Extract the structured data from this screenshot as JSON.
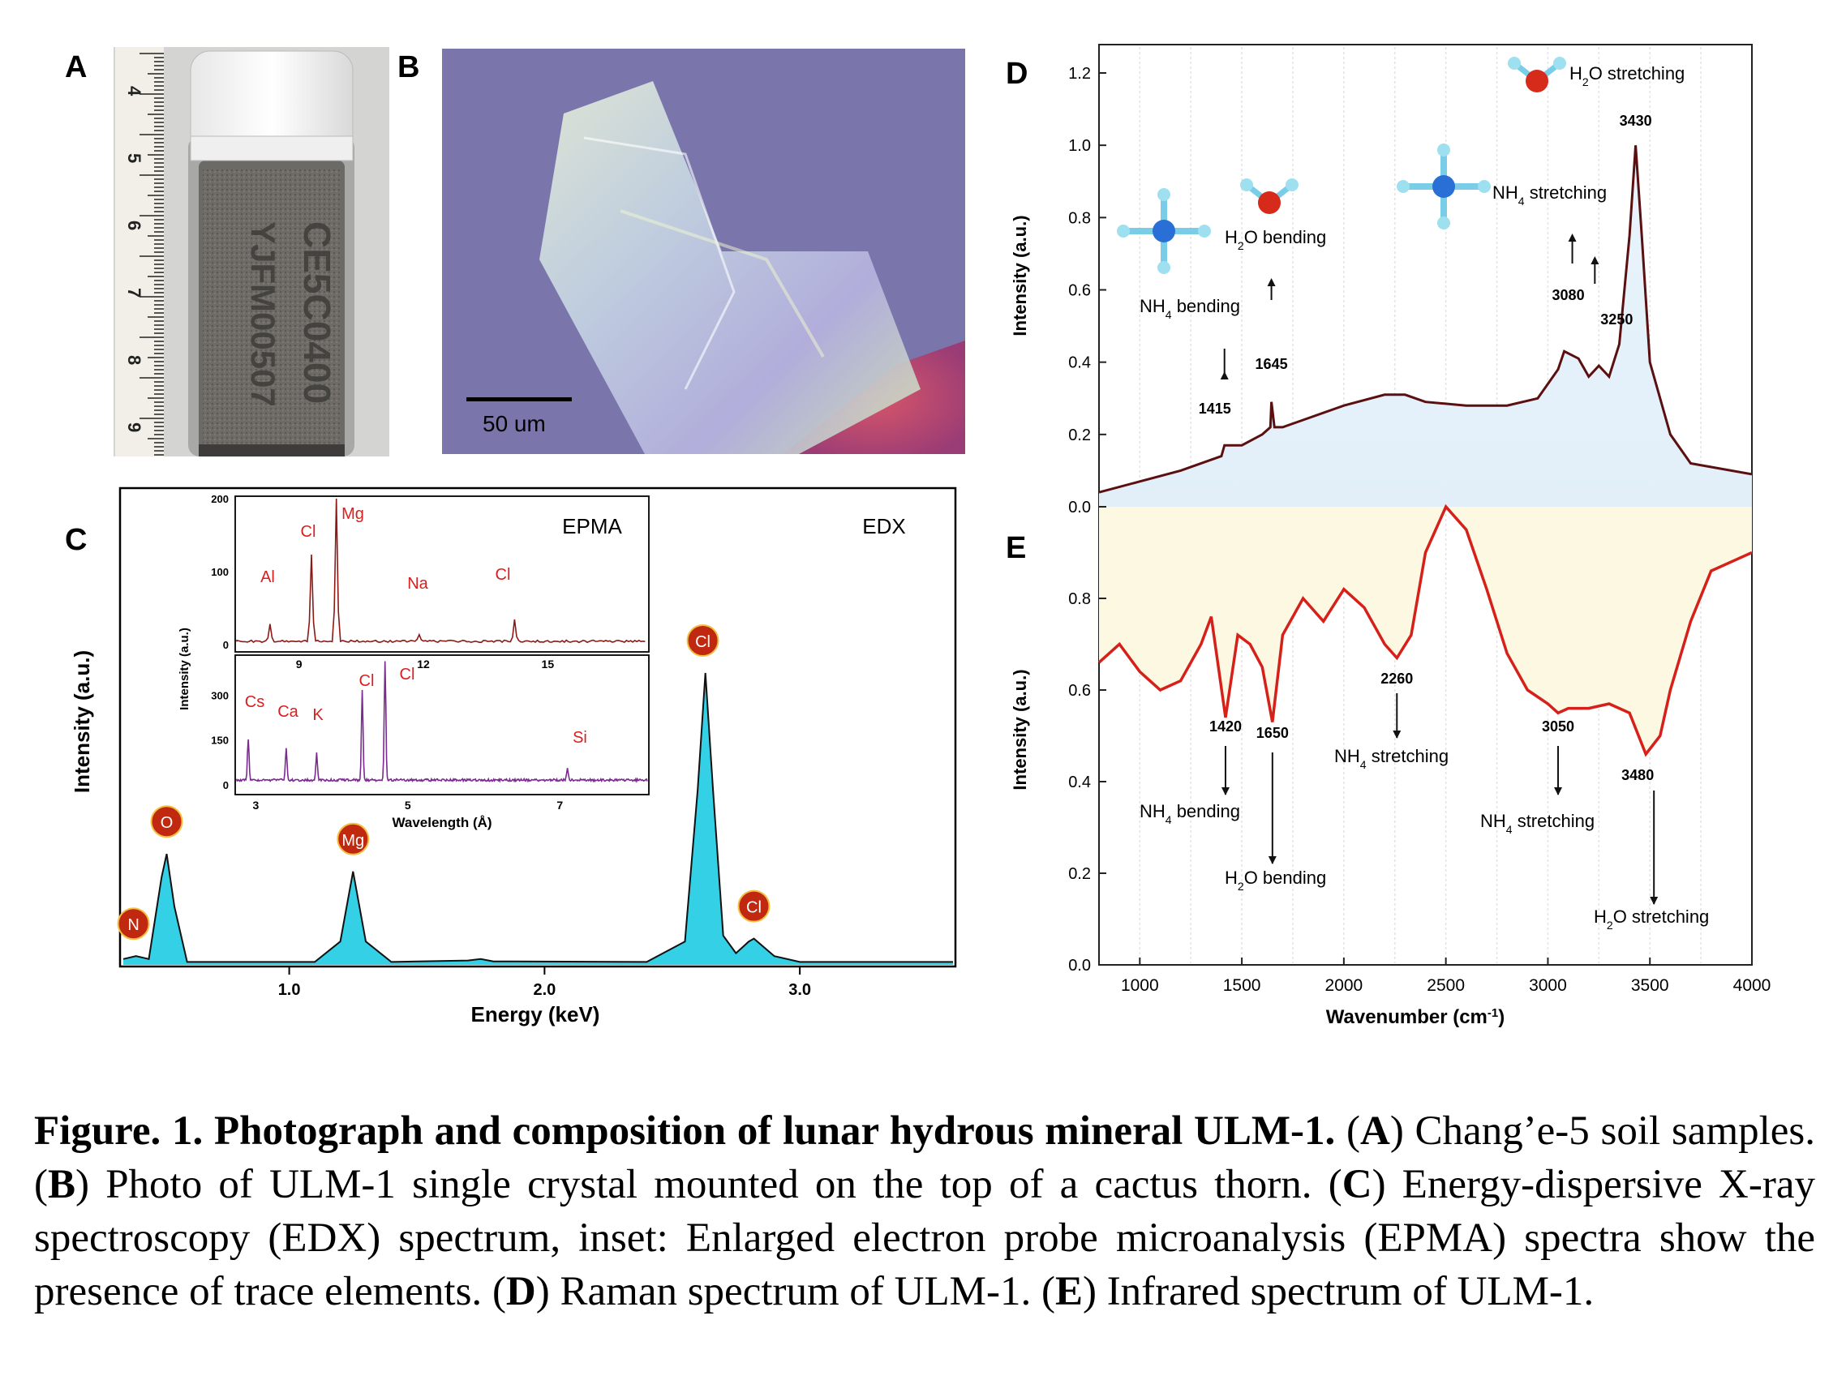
{
  "panels": {
    "A": "A",
    "B": "B",
    "C": "C",
    "D": "D",
    "E": "E"
  },
  "photoA": {
    "ruler_labels": [
      "4",
      "5",
      "6",
      "7",
      "8",
      "9"
    ],
    "vial_text_line1": "CE5C0400",
    "vial_text_line2": "YJFM00507"
  },
  "photoB": {
    "scale_label": "50 um"
  },
  "chart_data": [
    {
      "panel": "C",
      "type": "line",
      "title": "",
      "labels": {
        "EDX": "EDX",
        "EPMA": "EPMA"
      },
      "xlabel": "Energy (keV)",
      "ylabel": "Intensity (a.u.)",
      "xlim": [
        0.35,
        3.6
      ],
      "xticks": [
        "1.0",
        "2.0",
        "3.0"
      ],
      "series": [
        {
          "x": [
            0.35,
            0.4,
            0.45,
            0.5,
            0.52,
            0.55,
            0.6,
            0.8,
            1.1,
            1.2,
            1.25,
            1.3,
            1.4,
            1.7,
            1.75,
            1.8,
            2.4,
            2.55,
            2.6,
            2.63,
            2.66,
            2.7,
            2.75,
            2.8,
            2.82,
            2.9,
            3.0,
            3.6
          ],
          "y": [
            0.02,
            0.03,
            0.02,
            0.3,
            0.38,
            0.2,
            0.01,
            0.01,
            0.01,
            0.08,
            0.32,
            0.08,
            0.01,
            0.015,
            0.02,
            0.012,
            0.01,
            0.08,
            0.6,
            1.0,
            0.6,
            0.1,
            0.04,
            0.08,
            0.09,
            0.03,
            0.01,
            0.01
          ]
        }
      ],
      "peaks": [
        {
          "label": "N",
          "x": 0.39
        },
        {
          "label": "O",
          "x": 0.52
        },
        {
          "label": "Mg",
          "x": 1.25
        },
        {
          "label": "Cl",
          "x": 2.62
        },
        {
          "label": "Cl",
          "x": 2.82
        }
      ],
      "inset_top": {
        "yticks": [
          "0",
          "100",
          "200"
        ],
        "xticks": [
          "9",
          "12",
          "15"
        ],
        "peaks": [
          {
            "label": "Al",
            "x": 8.3,
            "y": 25
          },
          {
            "label": "Cl",
            "x": 9.3,
            "y": 120
          },
          {
            "label": "Mg",
            "x": 9.9,
            "y": 200
          },
          {
            "label": "Na",
            "x": 11.9,
            "y": 8
          },
          {
            "label": "Cl",
            "x": 14.2,
            "y": 30
          }
        ]
      },
      "inset_bottom": {
        "yticks": [
          "0",
          "150",
          "300"
        ],
        "xticks": [
          "3",
          "5",
          "7"
        ],
        "xlabel": "Wavelength (Å)",
        "peaks": [
          {
            "label": "Cs",
            "x": 2.9,
            "y": 140
          },
          {
            "label": "Ca",
            "x": 3.4,
            "y": 110
          },
          {
            "label": "K",
            "x": 3.8,
            "y": 90
          },
          {
            "label": "Cl",
            "x": 4.4,
            "y": 300
          },
          {
            "label": "Cl",
            "x": 4.7,
            "y": 400
          },
          {
            "label": "Si",
            "x": 7.1,
            "y": 40
          }
        ]
      },
      "inset_ylabel": "Intensity (a.u.)"
    },
    {
      "panel": "D",
      "type": "line",
      "xlabel": "",
      "ylabel": "Intensity (a.u.)",
      "ylim": [
        0,
        1.2
      ],
      "yticks": [
        "0.0",
        "0.2",
        "0.4",
        "0.6",
        "0.8",
        "1.0",
        "1.2"
      ],
      "xlim": [
        800,
        4000
      ],
      "series": [
        {
          "x": [
            800,
            1000,
            1200,
            1400,
            1415,
            1500,
            1600,
            1640,
            1645,
            1660,
            1700,
            1800,
            2000,
            2200,
            2300,
            2400,
            2600,
            2800,
            2950,
            3050,
            3080,
            3150,
            3200,
            3250,
            3300,
            3350,
            3400,
            3430,
            3460,
            3500,
            3600,
            3700,
            4000
          ],
          "y": [
            0.04,
            0.07,
            0.1,
            0.14,
            0.17,
            0.17,
            0.2,
            0.22,
            0.29,
            0.22,
            0.22,
            0.24,
            0.28,
            0.31,
            0.31,
            0.29,
            0.28,
            0.28,
            0.3,
            0.38,
            0.43,
            0.41,
            0.36,
            0.39,
            0.36,
            0.45,
            0.75,
            1.0,
            0.75,
            0.4,
            0.2,
            0.12,
            0.09
          ]
        }
      ],
      "annotations": [
        {
          "text": "1415",
          "x": 1415
        },
        {
          "text": "1645",
          "x": 1645
        },
        {
          "text": "3080",
          "x": 3080
        },
        {
          "text": "3250",
          "x": 3250
        },
        {
          "text": "3430",
          "x": 3430
        }
      ],
      "labels": {
        "nh4_bend": "NH",
        "h2o_bend": "H",
        "nh4_stretch": "NH",
        "h2o_stretch": "H"
      }
    },
    {
      "panel": "E",
      "type": "line",
      "xlabel": "Wavenumber (cm",
      "xlabel_sup": "-1",
      "xlabel_end": ")",
      "ylabel": "Intensity (a.u.)",
      "ylim": [
        0,
        1.0
      ],
      "yticks": [
        "0.0",
        "0.2",
        "0.4",
        "0.6",
        "0.8"
      ],
      "xlim": [
        800,
        4000
      ],
      "xticks": [
        "1000",
        "1500",
        "2000",
        "2500",
        "3000",
        "3500",
        "4000"
      ],
      "series": [
        {
          "x": [
            800,
            900,
            1000,
            1100,
            1200,
            1300,
            1350,
            1420,
            1480,
            1540,
            1600,
            1650,
            1700,
            1800,
            1900,
            2000,
            2100,
            2200,
            2260,
            2330,
            2400,
            2500,
            2600,
            2700,
            2800,
            2900,
            3000,
            3050,
            3100,
            3200,
            3300,
            3400,
            3480,
            3550,
            3600,
            3700,
            3800,
            3900,
            4000
          ],
          "y": [
            0.66,
            0.7,
            0.64,
            0.6,
            0.62,
            0.7,
            0.76,
            0.54,
            0.72,
            0.7,
            0.65,
            0.53,
            0.72,
            0.8,
            0.75,
            0.82,
            0.78,
            0.7,
            0.67,
            0.72,
            0.9,
            1.0,
            0.95,
            0.82,
            0.68,
            0.6,
            0.57,
            0.55,
            0.56,
            0.56,
            0.57,
            0.55,
            0.46,
            0.5,
            0.6,
            0.75,
            0.86,
            0.88,
            0.9
          ]
        }
      ],
      "annotations": [
        {
          "text": "1420",
          "x": 1420
        },
        {
          "text": "1650",
          "x": 1650
        },
        {
          "text": "2260",
          "x": 2260
        },
        {
          "text": "3050",
          "x": 3050
        },
        {
          "text": "3480",
          "x": 3480
        }
      ]
    }
  ],
  "peak_labels_D": {
    "nh4_bending": {
      "pre": "NH",
      "sub": "4",
      "post": " bending"
    },
    "h2o_bending": {
      "pre": "H",
      "sub": "2",
      "post": "O bending"
    },
    "nh4_stretching": {
      "pre": "NH",
      "sub": "4",
      "post": " stretching"
    },
    "h2o_stretching": {
      "pre": "H",
      "sub": "2",
      "post": "O stretching"
    }
  },
  "caption": {
    "title": "Figure. 1. Photograph and composition of lunar hydrous mineral ULM-1.",
    "a_letter": "A",
    "a_text": " Chang’e-5 soil samples. ",
    "b_letter": "B",
    "b_text": " Photo of ULM-1 single crystal mounted on the top of a cactus thorn. ",
    "c_letter": "C",
    "c_text": " Energy-dispersive X-ray spectroscopy (EDX) spectrum, inset: Enlarged electron probe microanalysis (EPMA) spectra show the presence of trace elements. ",
    "d_letter": "D",
    "d_text": " Raman spectrum of ULM-1. ",
    "e_letter": "E",
    "e_text": " Infrared spectrum of ULM-1."
  }
}
